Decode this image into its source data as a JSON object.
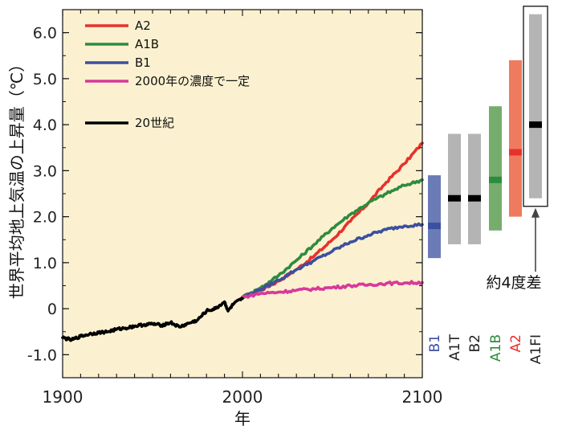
{
  "chart_data": {
    "type": "line",
    "title": "",
    "xlabel": "年",
    "ylabel": "世界平均地上気温の上昇量（℃）",
    "xlim": [
      1900,
      2100
    ],
    "ylim": [
      -1.5,
      6.5
    ],
    "x_ticks": [
      "1900",
      "2000",
      "2100"
    ],
    "y_ticks": [
      "-1.0",
      "0",
      "1.0",
      "2.0",
      "3.0",
      "4.0",
      "5.0",
      "6.0"
    ],
    "plot_background": "#fbf1d0",
    "legend_position": "top-left",
    "series": [
      {
        "name": "A2",
        "color": "#e8312a",
        "x": [
          2000,
          2010,
          2020,
          2030,
          2040,
          2050,
          2060,
          2070,
          2080,
          2090,
          2100
        ],
        "y": [
          0.25,
          0.4,
          0.6,
          0.85,
          1.15,
          1.5,
          1.9,
          2.3,
          2.75,
          3.15,
          3.6
        ]
      },
      {
        "name": "A1B",
        "color": "#2e8b3e",
        "x": [
          2000,
          2010,
          2020,
          2030,
          2040,
          2050,
          2060,
          2070,
          2080,
          2090,
          2100
        ],
        "y": [
          0.25,
          0.45,
          0.72,
          1.05,
          1.4,
          1.75,
          2.05,
          2.3,
          2.5,
          2.68,
          2.8
        ]
      },
      {
        "name": "B1",
        "color": "#3c4fa0",
        "x": [
          2000,
          2010,
          2020,
          2030,
          2040,
          2050,
          2060,
          2070,
          2080,
          2090,
          2100
        ],
        "y": [
          0.25,
          0.42,
          0.62,
          0.85,
          1.05,
          1.25,
          1.45,
          1.6,
          1.72,
          1.8,
          1.83
        ]
      },
      {
        "name": "2000年の濃度で一定",
        "color": "#d8389b",
        "x": [
          2000,
          2010,
          2020,
          2030,
          2040,
          2050,
          2060,
          2070,
          2080,
          2090,
          2100
        ],
        "y": [
          0.25,
          0.33,
          0.36,
          0.4,
          0.43,
          0.46,
          0.5,
          0.52,
          0.55,
          0.56,
          0.57
        ]
      },
      {
        "name": "20世紀",
        "color": "#000000",
        "x": [
          1900,
          1905,
          1910,
          1915,
          1920,
          1925,
          1930,
          1935,
          1940,
          1945,
          1950,
          1955,
          1960,
          1965,
          1970,
          1975,
          1980,
          1985,
          1990,
          1992,
          1995,
          2000
        ],
        "y": [
          -0.63,
          -0.68,
          -0.6,
          -0.55,
          -0.52,
          -0.5,
          -0.45,
          -0.42,
          -0.38,
          -0.35,
          -0.33,
          -0.36,
          -0.3,
          -0.4,
          -0.32,
          -0.25,
          -0.05,
          0.0,
          0.15,
          -0.05,
          0.1,
          0.22
        ]
      }
    ],
    "ranges": [
      {
        "scenario": "B1",
        "low": 1.1,
        "best": 1.8,
        "high": 2.9,
        "bar_color": "#6b7bb6",
        "best_color": "#3c4fa0",
        "label_color": "#3c4fa0"
      },
      {
        "scenario": "A1T",
        "low": 1.4,
        "best": 2.4,
        "high": 3.8,
        "bar_color": "#b4b4b4",
        "best_color": "#000000",
        "label_color": "#222222"
      },
      {
        "scenario": "B2",
        "low": 1.4,
        "best": 2.4,
        "high": 3.8,
        "bar_color": "#b4b4b4",
        "best_color": "#000000",
        "label_color": "#222222"
      },
      {
        "scenario": "A1B",
        "low": 1.7,
        "best": 2.8,
        "high": 4.4,
        "bar_color": "#76ad6c",
        "best_color": "#2e8b3e",
        "label_color": "#2e8b3e"
      },
      {
        "scenario": "A2",
        "low": 2.0,
        "best": 3.4,
        "high": 5.4,
        "bar_color": "#ef7a5e",
        "best_color": "#e8312a",
        "label_color": "#e8312a"
      },
      {
        "scenario": "A1FI",
        "low": 2.4,
        "best": 4.0,
        "high": 6.4,
        "bar_color": "#b4b4b4",
        "best_color": "#000000",
        "label_color": "#222222"
      }
    ],
    "annotation": "約4度差"
  }
}
